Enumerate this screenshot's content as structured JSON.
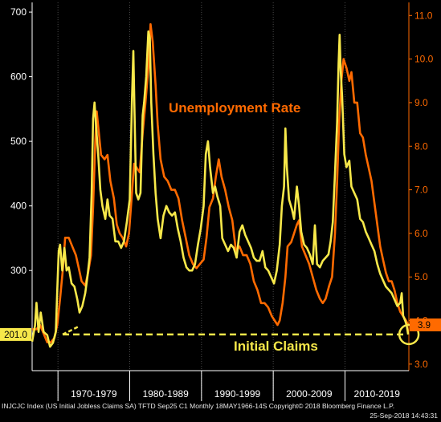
{
  "chart_data": {
    "type": "line",
    "annotations": {
      "unemployment": "Unemployment Rate",
      "claims": "Initial Claims"
    },
    "left_axis": {
      "ticks": [
        300,
        400,
        500,
        600,
        700
      ],
      "range": [
        145,
        715
      ]
    },
    "right_axis": {
      "ticks": [
        "3.0",
        "4.0",
        "5.0",
        "6.0",
        "7.0",
        "8.0",
        "9.0",
        "10.0",
        "11.0"
      ],
      "range": [
        2.85,
        11.3
      ]
    },
    "decade_labels": [
      "1970-1979",
      "1980-1989",
      "1990-1999",
      "2000-2009",
      "2010-2019"
    ],
    "x_range": [
      1966.4,
      2018.9
    ],
    "left_tag": "201.0",
    "right_tag": "3.9",
    "reference_value": 201,
    "series": [
      {
        "name": "Initial Claims",
        "axis": "left",
        "color": "#f7e84a",
        "points": [
          [
            1966.4,
            190
          ],
          [
            1966.8,
            215
          ],
          [
            1967.0,
            250
          ],
          [
            1967.3,
            205
          ],
          [
            1967.6,
            235
          ],
          [
            1968.0,
            205
          ],
          [
            1968.5,
            200
          ],
          [
            1968.9,
            182
          ],
          [
            1969.3,
            188
          ],
          [
            1969.7,
            205
          ],
          [
            1969.9,
            270
          ],
          [
            1970.1,
            330
          ],
          [
            1970.3,
            340
          ],
          [
            1970.6,
            300
          ],
          [
            1970.9,
            335
          ],
          [
            1971.2,
            300
          ],
          [
            1971.5,
            305
          ],
          [
            1971.9,
            280
          ],
          [
            1972.3,
            275
          ],
          [
            1972.7,
            255
          ],
          [
            1973.0,
            235
          ],
          [
            1973.4,
            245
          ],
          [
            1973.8,
            265
          ],
          [
            1974.1,
            290
          ],
          [
            1974.4,
            320
          ],
          [
            1974.7,
            420
          ],
          [
            1974.9,
            535
          ],
          [
            1975.1,
            560
          ],
          [
            1975.3,
            525
          ],
          [
            1975.6,
            480
          ],
          [
            1975.9,
            425
          ],
          [
            1976.2,
            400
          ],
          [
            1976.6,
            380
          ],
          [
            1976.9,
            410
          ],
          [
            1977.2,
            385
          ],
          [
            1977.6,
            380
          ],
          [
            1978.0,
            345
          ],
          [
            1978.4,
            345
          ],
          [
            1978.8,
            335
          ],
          [
            1979.2,
            345
          ],
          [
            1979.6,
            375
          ],
          [
            1980.0,
            410
          ],
          [
            1980.3,
            560
          ],
          [
            1980.5,
            640
          ],
          [
            1980.7,
            530
          ],
          [
            1980.9,
            420
          ],
          [
            1981.2,
            410
          ],
          [
            1981.5,
            420
          ],
          [
            1981.8,
            540
          ],
          [
            1982.0,
            560
          ],
          [
            1982.3,
            600
          ],
          [
            1982.6,
            670
          ],
          [
            1982.8,
            660
          ],
          [
            1983.0,
            560
          ],
          [
            1983.3,
            480
          ],
          [
            1983.6,
            420
          ],
          [
            1983.9,
            380
          ],
          [
            1984.3,
            350
          ],
          [
            1984.7,
            385
          ],
          [
            1985.1,
            400
          ],
          [
            1985.5,
            390
          ],
          [
            1985.9,
            385
          ],
          [
            1986.3,
            390
          ],
          [
            1986.7,
            365
          ],
          [
            1987.1,
            345
          ],
          [
            1987.5,
            320
          ],
          [
            1987.9,
            305
          ],
          [
            1988.3,
            300
          ],
          [
            1988.7,
            300
          ],
          [
            1989.1,
            310
          ],
          [
            1989.5,
            340
          ],
          [
            1989.9,
            365
          ],
          [
            1990.3,
            400
          ],
          [
            1990.6,
            480
          ],
          [
            1990.9,
            500
          ],
          [
            1991.2,
            460
          ],
          [
            1991.6,
            420
          ],
          [
            1991.9,
            430
          ],
          [
            1992.2,
            415
          ],
          [
            1992.6,
            400
          ],
          [
            1992.9,
            350
          ],
          [
            1993.3,
            340
          ],
          [
            1993.7,
            330
          ],
          [
            1994.1,
            340
          ],
          [
            1994.5,
            335
          ],
          [
            1994.9,
            320
          ],
          [
            1995.3,
            360
          ],
          [
            1995.7,
            370
          ],
          [
            1996.1,
            355
          ],
          [
            1996.5,
            345
          ],
          [
            1996.9,
            335
          ],
          [
            1997.3,
            320
          ],
          [
            1997.7,
            315
          ],
          [
            1998.1,
            315
          ],
          [
            1998.5,
            330
          ],
          [
            1998.9,
            305
          ],
          [
            1999.3,
            300
          ],
          [
            1999.7,
            290
          ],
          [
            2000.1,
            280
          ],
          [
            2000.5,
            300
          ],
          [
            2000.9,
            340
          ],
          [
            2001.2,
            400
          ],
          [
            2001.5,
            430
          ],
          [
            2001.7,
            520
          ],
          [
            2001.9,
            460
          ],
          [
            2002.2,
            410
          ],
          [
            2002.6,
            395
          ],
          [
            2002.9,
            380
          ],
          [
            2003.3,
            430
          ],
          [
            2003.6,
            400
          ],
          [
            2003.9,
            360
          ],
          [
            2004.3,
            340
          ],
          [
            2004.7,
            335
          ],
          [
            2005.1,
            325
          ],
          [
            2005.5,
            310
          ],
          [
            2005.8,
            370
          ],
          [
            2006.1,
            310
          ],
          [
            2006.5,
            305
          ],
          [
            2006.9,
            315
          ],
          [
            2007.3,
            320
          ],
          [
            2007.7,
            325
          ],
          [
            2008.0,
            345
          ],
          [
            2008.3,
            375
          ],
          [
            2008.6,
            450
          ],
          [
            2008.9,
            530
          ],
          [
            2009.1,
            620
          ],
          [
            2009.25,
            665
          ],
          [
            2009.4,
            610
          ],
          [
            2009.6,
            570
          ],
          [
            2009.9,
            480
          ],
          [
            2010.2,
            460
          ],
          [
            2010.6,
            470
          ],
          [
            2010.9,
            430
          ],
          [
            2011.3,
            420
          ],
          [
            2011.7,
            410
          ],
          [
            2012.1,
            380
          ],
          [
            2012.5,
            375
          ],
          [
            2012.9,
            360
          ],
          [
            2013.3,
            350
          ],
          [
            2013.7,
            340
          ],
          [
            2014.1,
            330
          ],
          [
            2014.5,
            310
          ],
          [
            2014.9,
            295
          ],
          [
            2015.3,
            285
          ],
          [
            2015.7,
            275
          ],
          [
            2016.1,
            270
          ],
          [
            2016.5,
            265
          ],
          [
            2016.9,
            255
          ],
          [
            2017.3,
            245
          ],
          [
            2017.7,
            250
          ],
          [
            2017.9,
            265
          ],
          [
            2018.1,
            230
          ],
          [
            2018.4,
            222
          ],
          [
            2018.6,
            215
          ],
          [
            2018.8,
            201
          ]
        ]
      },
      {
        "name": "Unemployment Rate",
        "axis": "right",
        "color": "#ff6a00",
        "points": [
          [
            1966.4,
            3.8
          ],
          [
            1967.0,
            3.8
          ],
          [
            1967.5,
            3.9
          ],
          [
            1968.0,
            3.7
          ],
          [
            1968.5,
            3.5
          ],
          [
            1969.0,
            3.5
          ],
          [
            1969.5,
            3.6
          ],
          [
            1969.9,
            3.9
          ],
          [
            1970.3,
            4.5
          ],
          [
            1970.7,
            5.2
          ],
          [
            1971.0,
            5.9
          ],
          [
            1971.5,
            5.9
          ],
          [
            1972.0,
            5.7
          ],
          [
            1972.5,
            5.5
          ],
          [
            1972.9,
            5.2
          ],
          [
            1973.3,
            4.9
          ],
          [
            1973.8,
            4.8
          ],
          [
            1974.2,
            5.1
          ],
          [
            1974.6,
            5.5
          ],
          [
            1974.9,
            6.6
          ],
          [
            1975.2,
            8.1
          ],
          [
            1975.4,
            8.8
          ],
          [
            1975.7,
            8.3
          ],
          [
            1976.0,
            7.8
          ],
          [
            1976.5,
            7.7
          ],
          [
            1976.9,
            7.8
          ],
          [
            1977.3,
            7.2
          ],
          [
            1977.8,
            6.8
          ],
          [
            1978.2,
            6.2
          ],
          [
            1978.6,
            6.0
          ],
          [
            1979.0,
            5.9
          ],
          [
            1979.5,
            5.7
          ],
          [
            1979.9,
            6.0
          ],
          [
            1980.3,
            6.9
          ],
          [
            1980.6,
            7.6
          ],
          [
            1981.0,
            7.5
          ],
          [
            1981.4,
            7.4
          ],
          [
            1981.8,
            8.3
          ],
          [
            1982.2,
            9.0
          ],
          [
            1982.6,
            9.8
          ],
          [
            1982.9,
            10.8
          ],
          [
            1983.2,
            10.4
          ],
          [
            1983.6,
            9.4
          ],
          [
            1983.9,
            8.5
          ],
          [
            1984.3,
            7.7
          ],
          [
            1984.8,
            7.3
          ],
          [
            1985.3,
            7.2
          ],
          [
            1985.8,
            7.0
          ],
          [
            1986.3,
            7.0
          ],
          [
            1986.8,
            6.8
          ],
          [
            1987.3,
            6.3
          ],
          [
            1987.8,
            5.9
          ],
          [
            1988.3,
            5.5
          ],
          [
            1988.8,
            5.3
          ],
          [
            1989.3,
            5.2
          ],
          [
            1989.8,
            5.3
          ],
          [
            1990.3,
            5.4
          ],
          [
            1990.7,
            5.9
          ],
          [
            1991.1,
            6.6
          ],
          [
            1991.6,
            6.8
          ],
          [
            1992.0,
            7.3
          ],
          [
            1992.4,
            7.7
          ],
          [
            1992.8,
            7.3
          ],
          [
            1993.3,
            7.0
          ],
          [
            1993.8,
            6.6
          ],
          [
            1994.3,
            6.3
          ],
          [
            1994.8,
            5.6
          ],
          [
            1995.3,
            5.7
          ],
          [
            1995.8,
            5.5
          ],
          [
            1996.3,
            5.5
          ],
          [
            1996.8,
            5.3
          ],
          [
            1997.3,
            4.9
          ],
          [
            1997.8,
            4.7
          ],
          [
            1998.3,
            4.4
          ],
          [
            1998.8,
            4.4
          ],
          [
            1999.3,
            4.3
          ],
          [
            1999.8,
            4.1
          ],
          [
            2000.2,
            4.0
          ],
          [
            2000.6,
            3.9
          ],
          [
            2000.9,
            4.0
          ],
          [
            2001.3,
            4.4
          ],
          [
            2001.7,
            5.0
          ],
          [
            2002.0,
            5.7
          ],
          [
            2002.5,
            5.8
          ],
          [
            2002.9,
            6.0
          ],
          [
            2003.3,
            6.2
          ],
          [
            2003.6,
            6.3
          ],
          [
            2004.0,
            5.7
          ],
          [
            2004.5,
            5.5
          ],
          [
            2005.0,
            5.3
          ],
          [
            2005.5,
            5.0
          ],
          [
            2006.0,
            4.7
          ],
          [
            2006.5,
            4.5
          ],
          [
            2006.9,
            4.4
          ],
          [
            2007.3,
            4.5
          ],
          [
            2007.8,
            4.8
          ],
          [
            2008.2,
            5.0
          ],
          [
            2008.6,
            6.0
          ],
          [
            2008.9,
            7.2
          ],
          [
            2009.2,
            8.6
          ],
          [
            2009.5,
            9.5
          ],
          [
            2009.8,
            10.0
          ],
          [
            2010.2,
            9.8
          ],
          [
            2010.6,
            9.5
          ],
          [
            2010.9,
            9.7
          ],
          [
            2011.3,
            9.0
          ],
          [
            2011.7,
            9.0
          ],
          [
            2012.1,
            8.3
          ],
          [
            2012.5,
            8.2
          ],
          [
            2012.9,
            7.8
          ],
          [
            2013.3,
            7.5
          ],
          [
            2013.7,
            7.2
          ],
          [
            2014.1,
            6.7
          ],
          [
            2014.5,
            6.2
          ],
          [
            2014.9,
            5.7
          ],
          [
            2015.3,
            5.4
          ],
          [
            2015.7,
            5.1
          ],
          [
            2016.1,
            4.9
          ],
          [
            2016.5,
            4.9
          ],
          [
            2016.9,
            4.7
          ],
          [
            2017.3,
            4.4
          ],
          [
            2017.7,
            4.2
          ],
          [
            2018.1,
            4.1
          ],
          [
            2018.5,
            4.0
          ],
          [
            2018.8,
            3.9
          ]
        ]
      }
    ]
  },
  "footer": {
    "source": "INJCJC Index (US Initial Jobless Claims SA) TFTD Sep25 C1  Monthly 18MAY1966-14S Copyright© 2018 Bloomberg Finance L.P.",
    "timestamp": "25-Sep-2018 14:43:31"
  }
}
